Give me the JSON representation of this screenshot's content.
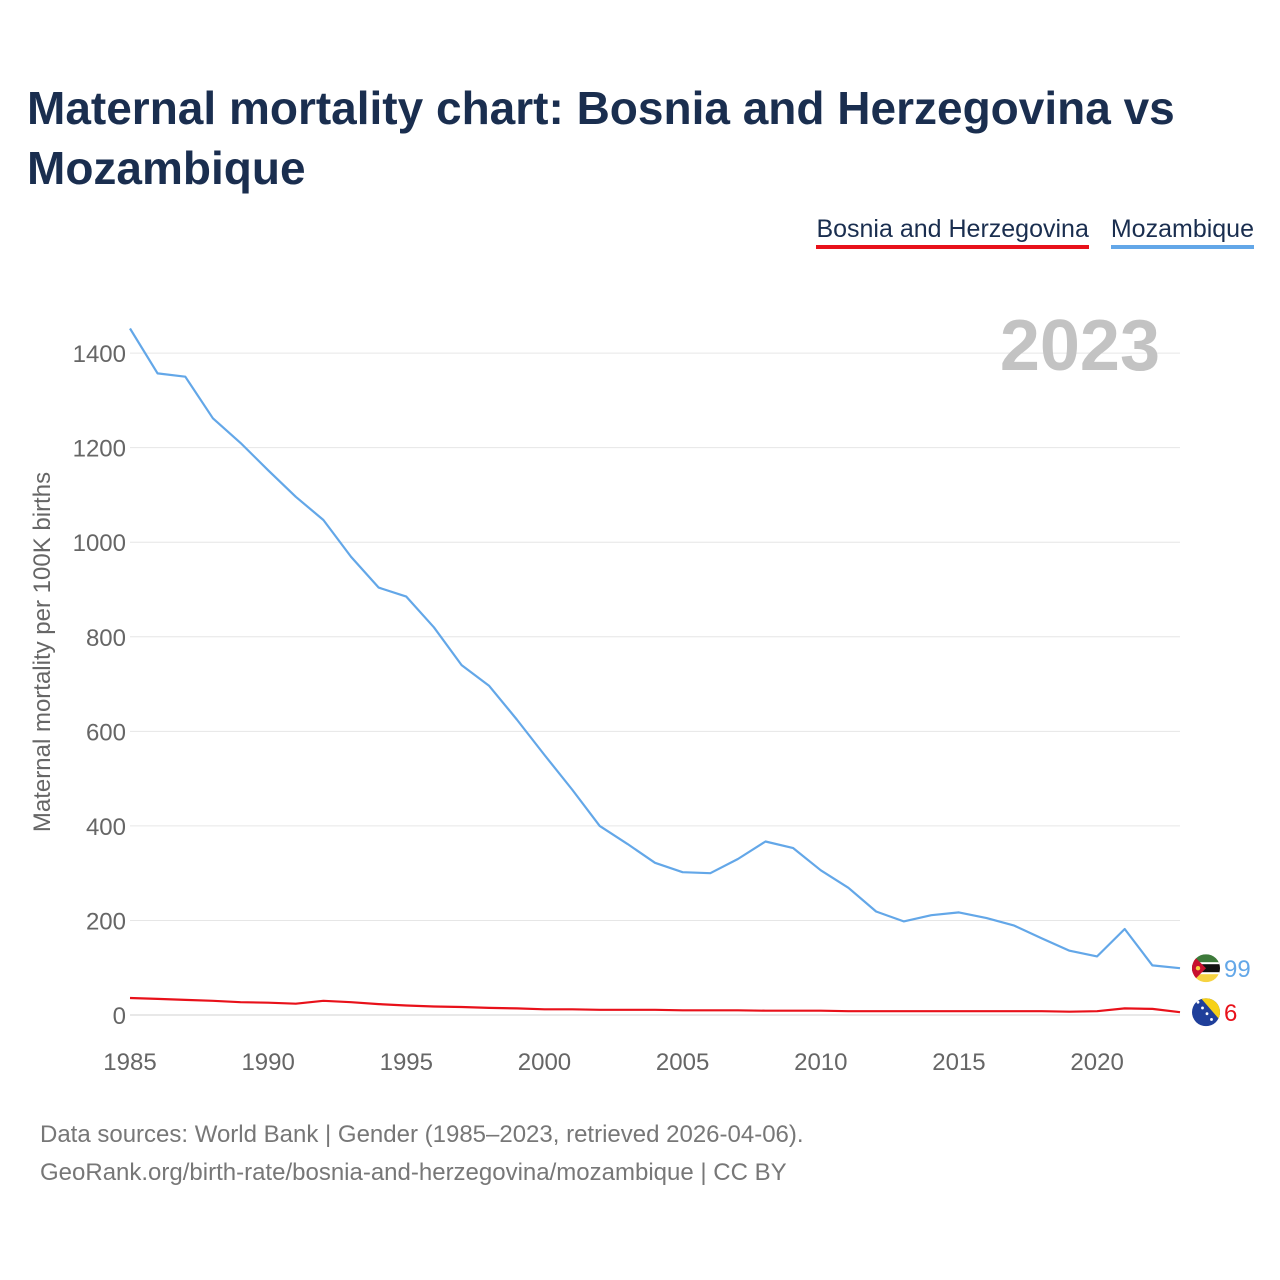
{
  "chart_data": {
    "type": "line",
    "title": "Maternal mortality chart: Bosnia and Herzegovina vs Mozambique",
    "ylabel": "Maternal mortality per 100K births",
    "xlabel": "",
    "year_badge": "2023",
    "xlim": [
      1985,
      2023
    ],
    "ylim": [
      0,
      1470
    ],
    "x_ticks": [
      1985,
      1990,
      1995,
      2000,
      2005,
      2010,
      2015,
      2020
    ],
    "y_ticks": [
      0,
      200,
      400,
      600,
      800,
      1000,
      1200,
      1400
    ],
    "legend_position": "top-right",
    "x": [
      1985,
      1986,
      1987,
      1988,
      1989,
      1990,
      1991,
      1992,
      1993,
      1994,
      1995,
      1996,
      1997,
      1998,
      1999,
      2000,
      2001,
      2002,
      2003,
      2004,
      2005,
      2006,
      2007,
      2008,
      2009,
      2010,
      2011,
      2012,
      2013,
      2014,
      2015,
      2016,
      2017,
      2018,
      2019,
      2020,
      2021,
      2022,
      2023
    ],
    "series": [
      {
        "name": "Bosnia and Herzegovina",
        "color": "#e8111a",
        "end_label": "6",
        "flag": "bosnia-and-herzegovina-flag",
        "values": [
          36,
          34,
          32,
          30,
          27,
          26,
          24,
          30,
          27,
          23,
          20,
          18,
          17,
          15,
          14,
          12,
          12,
          11,
          11,
          11,
          10,
          10,
          10,
          9,
          9,
          9,
          8,
          8,
          8,
          8,
          8,
          8,
          8,
          8,
          7,
          8,
          14,
          13,
          6
        ]
      },
      {
        "name": "Mozambique",
        "color": "#63a7e8",
        "end_label": "99",
        "flag": "mozambique-flag",
        "values": [
          1452,
          1357,
          1350,
          1262,
          1210,
          1152,
          1096,
          1047,
          969,
          904,
          885,
          820,
          740,
          696,
          625,
          550,
          477,
          400,
          362,
          322,
          302,
          300,
          330,
          367,
          353,
          306,
          269,
          219,
          198,
          211,
          217,
          205,
          189,
          162,
          136,
          124,
          182,
          105,
          99
        ]
      }
    ]
  },
  "footer": {
    "line1": "Data sources: World Bank | Gender (1985–2023, retrieved 2026-04-06).",
    "line2": "GeoRank.org/birth-rate/bosnia-and-herzegovina/mozambique | CC BY"
  }
}
